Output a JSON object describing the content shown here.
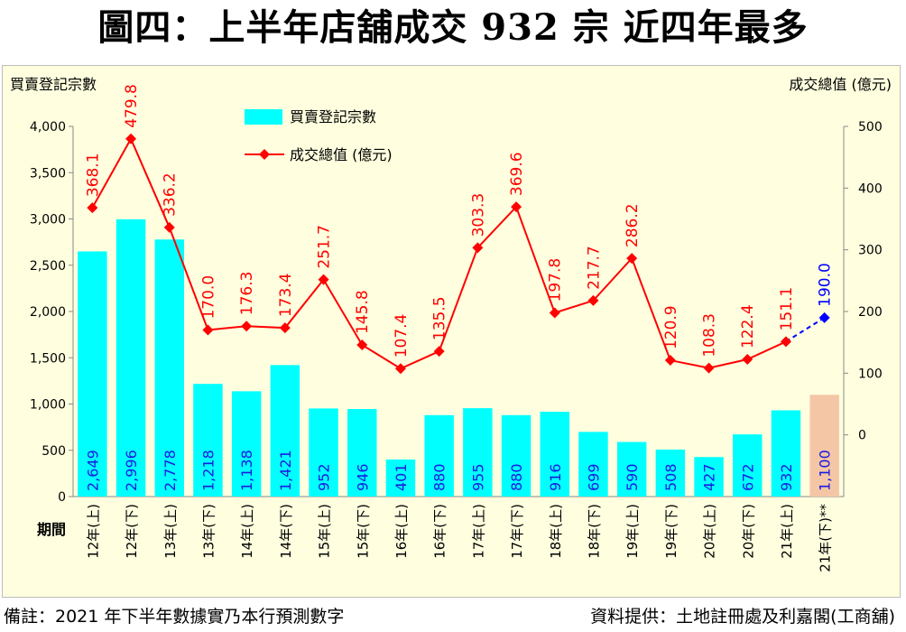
{
  "title": "圖四：上半年店舖成交 932 宗  近四年最多",
  "footer": {
    "note": "備註：2021 年下半年數據實乃本行預測數字",
    "source": "資料提供：土地註冊處及利嘉閣(工商舖)"
  },
  "colors": {
    "bar": "#00ffff",
    "bar_forecast": "#f5c6a5",
    "line": "#ff0000",
    "line_forecast": "#0000ff",
    "bar_label": "#1a1ae0",
    "value_label": "#ff0000",
    "plot_bg": "#ffffdf"
  },
  "chart_data": {
    "type": "bar+line",
    "title": "圖四：上半年店舖成交 932 宗  近四年最多",
    "xlabel": "期間",
    "ylabel_left": "買賣登記宗數",
    "ylabel_right": "成交總值 (億元)",
    "y_left_range": [
      0,
      4000
    ],
    "y_left_ticks": [
      "0",
      "500",
      "1,000",
      "1,500",
      "2,000",
      "2,500",
      "3,000",
      "3,500",
      "4,000"
    ],
    "y_left_tick_values": [
      0,
      500,
      1000,
      1500,
      2000,
      2500,
      3000,
      3500,
      4000
    ],
    "y_right_range": [
      -100,
      500
    ],
    "y_right_ticks": [
      "0",
      "100",
      "200",
      "300",
      "400",
      "500"
    ],
    "y_right_tick_values": [
      0,
      100,
      200,
      300,
      400,
      500
    ],
    "categories": [
      "12年(上)",
      "12年(下)",
      "13年(上)",
      "13年(下)",
      "14年(上)",
      "14年(下)",
      "15年(上)",
      "15年(下)",
      "16年(上)",
      "16年(下)",
      "17年(上)",
      "17年(下)",
      "18年(上)",
      "18年(下)",
      "19年(上)",
      "19年(下)",
      "20年(上)",
      "20年(下)",
      "21年(上)",
      "21年(下)**"
    ],
    "series": [
      {
        "name": "買賣登記宗數",
        "kind": "bar",
        "axis": "left",
        "values": [
          2649,
          2996,
          2778,
          1218,
          1138,
          1421,
          952,
          946,
          401,
          880,
          955,
          880,
          916,
          699,
          590,
          508,
          427,
          672,
          932,
          1100
        ],
        "labels": [
          "2,649",
          "2,996",
          "2,778",
          "1,218",
          "1,138",
          "1,421",
          "952",
          "946",
          "401",
          "880",
          "955",
          "880",
          "916",
          "699",
          "590",
          "508",
          "427",
          "672",
          "932",
          "1,100"
        ],
        "forecast_index": 19
      },
      {
        "name": "成交總值 (億元)",
        "kind": "line",
        "axis": "right",
        "values": [
          368.1,
          479.8,
          336.2,
          170.0,
          176.3,
          173.4,
          251.7,
          145.8,
          107.4,
          135.5,
          303.3,
          369.6,
          197.8,
          217.7,
          286.2,
          120.9,
          108.3,
          122.4,
          151.1,
          190.0
        ],
        "labels": [
          "368.1",
          "479.8",
          "336.2",
          "170.0",
          "176.3",
          "173.4",
          "251.7",
          "145.8",
          "107.4",
          "135.5",
          "303.3",
          "369.6",
          "197.8",
          "217.7",
          "286.2",
          "120.9",
          "108.3",
          "122.4",
          "151.1",
          "190.0"
        ],
        "forecast_index": 19
      }
    ],
    "legend": {
      "position": "top-left",
      "entries": [
        "買賣登記宗數",
        "成交總值 (億元)"
      ]
    }
  }
}
